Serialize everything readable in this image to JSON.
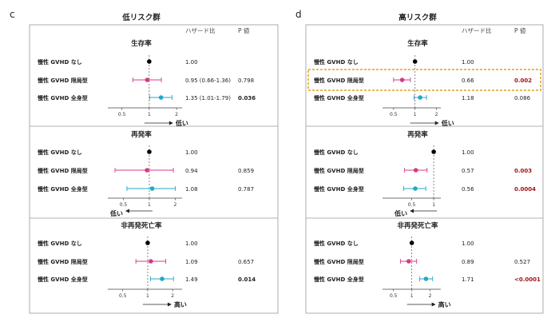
{
  "colors": {
    "restricted": "#d63a86",
    "systemic": "#22a8c7",
    "reference": "#000000",
    "significant_p": "#a3151a",
    "highlight": "#e0a020"
  },
  "chart_data": [
    {
      "type": "forest",
      "panel_label": "c",
      "title": "低リスク群",
      "col_hr_header": "ハザード比",
      "col_p_header": "P 値",
      "xscale": "log",
      "sections": [
        {
          "title": "生存率",
          "xlim": [
            0.35,
            2.3
          ],
          "ticks": [
            {
              "value": 0.5,
              "label": "0.5"
            },
            {
              "value": 1,
              "label": "1"
            },
            {
              "value": 2,
              "label": "2"
            }
          ],
          "direction_label": "低い",
          "direction_side": "right",
          "rows": [
            {
              "label": "慢性 GVHD なし",
              "kind": "reference",
              "hr": 1.0,
              "ci": null,
              "hr_text": "1.00",
              "p_text": "",
              "p_bold": false,
              "p_significant": false
            },
            {
              "label": "慢性 GVHD 限局型",
              "kind": "restricted",
              "hr": 0.95,
              "ci": [
                0.66,
                1.36
              ],
              "hr_text": "0.95 (0.66-1.36)",
              "p_text": "0.798",
              "p_bold": false,
              "p_significant": false
            },
            {
              "label": "慢性 GVHD 全身型",
              "kind": "systemic",
              "hr": 1.35,
              "ci": [
                1.01,
                1.79
              ],
              "hr_text": "1.35 (1.01-1.79)",
              "p_text": "0.036",
              "p_bold": true,
              "p_significant": false
            }
          ]
        },
        {
          "title": "再発率",
          "xlim": [
            0.33,
            2.4
          ],
          "ticks": [
            {
              "value": 0.5,
              "label": "0.5"
            },
            {
              "value": 1,
              "label": "1"
            },
            {
              "value": 2,
              "label": "2"
            }
          ],
          "direction_label": "低い",
          "direction_side": "left",
          "rows": [
            {
              "label": "慢性 GVHD なし",
              "kind": "reference",
              "hr": 1.0,
              "ci": null,
              "hr_text": "1.00",
              "p_text": "",
              "p_bold": false,
              "p_significant": false
            },
            {
              "label": "慢性 GVHD 限局型",
              "kind": "restricted",
              "hr": 0.94,
              "ci": [
                0.4,
                1.9
              ],
              "hr_text": "0.94",
              "p_text": "0.859",
              "p_bold": false,
              "p_significant": false
            },
            {
              "label": "慢性 GVHD 全身型",
              "kind": "systemic",
              "hr": 1.08,
              "ci": [
                0.55,
                2.0
              ],
              "hr_text": "1.08",
              "p_text": "0.787",
              "p_bold": false,
              "p_significant": false
            }
          ]
        },
        {
          "title": "非再発死亡率",
          "xlim": [
            0.33,
            2.6
          ],
          "ticks": [
            {
              "value": 0.5,
              "label": "0.5"
            },
            {
              "value": 1,
              "label": "1"
            },
            {
              "value": 2,
              "label": "2"
            }
          ],
          "direction_label": "高い",
          "direction_side": "right",
          "rows": [
            {
              "label": "慢性 GVHD なし",
              "kind": "reference",
              "hr": 1.0,
              "ci": null,
              "hr_text": "1.00",
              "p_text": "",
              "p_bold": false,
              "p_significant": false
            },
            {
              "label": "慢性 GVHD 限局型",
              "kind": "restricted",
              "hr": 1.09,
              "ci": [
                0.72,
                1.65
              ],
              "hr_text": "1.09",
              "p_text": "0.657",
              "p_bold": false,
              "p_significant": false
            },
            {
              "label": "慢性 GVHD 全身型",
              "kind": "systemic",
              "hr": 1.49,
              "ci": [
                1.08,
                2.05
              ],
              "hr_text": "1.49",
              "p_text": "0.014",
              "p_bold": true,
              "p_significant": false
            }
          ]
        }
      ]
    },
    {
      "type": "forest",
      "panel_label": "d",
      "title": "高リスク群",
      "col_hr_header": "ハザード比",
      "col_p_header": "P 値",
      "xscale": "log",
      "sections": [
        {
          "title": "生存率",
          "xlim": [
            0.35,
            2.3
          ],
          "ticks": [
            {
              "value": 0.5,
              "label": "0.5"
            },
            {
              "value": 1,
              "label": "1"
            },
            {
              "value": 2,
              "label": "2"
            }
          ],
          "direction_label": "低い",
          "direction_side": "right",
          "highlight_row": 1,
          "rows": [
            {
              "label": "慢性 GVHD なし",
              "kind": "reference",
              "hr": 1.0,
              "ci": null,
              "hr_text": "1.00",
              "p_text": "",
              "p_bold": false,
              "p_significant": false
            },
            {
              "label": "慢性 GVHD 限局型",
              "kind": "restricted",
              "hr": 0.66,
              "ci": [
                0.5,
                0.86
              ],
              "hr_text": "0.66",
              "p_text": "0.002",
              "p_bold": true,
              "p_significant": true
            },
            {
              "label": "慢性 GVHD 全身型",
              "kind": "systemic",
              "hr": 1.18,
              "ci": [
                0.97,
                1.45
              ],
              "hr_text": "1.18",
              "p_text": "0.086",
              "p_bold": false,
              "p_significant": false
            }
          ]
        },
        {
          "title": "再発率",
          "xlim": [
            0.2,
            1.25
          ],
          "ticks": [
            {
              "value": 0.5,
              "label": "0.5"
            },
            {
              "value": 1,
              "label": "1"
            }
          ],
          "direction_label": "低い",
          "direction_side": "left",
          "rows": [
            {
              "label": "慢性 GVHD なし",
              "kind": "reference",
              "hr": 1.0,
              "ci": null,
              "hr_text": "1.00",
              "p_text": "",
              "p_bold": false,
              "p_significant": false
            },
            {
              "label": "慢性 GVHD 限局型",
              "kind": "restricted",
              "hr": 0.57,
              "ci": [
                0.4,
                0.81
              ],
              "hr_text": "0.57",
              "p_text": "0.003",
              "p_bold": true,
              "p_significant": true
            },
            {
              "label": "慢性 GVHD 全身型",
              "kind": "systemic",
              "hr": 0.56,
              "ci": [
                0.39,
                0.78
              ],
              "hr_text": "0.56",
              "p_text": "0.0004",
              "p_bold": true,
              "p_significant": true
            }
          ]
        },
        {
          "title": "非再発死亡率",
          "xlim": [
            0.33,
            3.0
          ],
          "ticks": [
            {
              "value": 0.5,
              "label": "0.5"
            },
            {
              "value": 1,
              "label": "1"
            },
            {
              "value": 2,
              "label": "2"
            }
          ],
          "direction_label": "高い",
          "direction_side": "right",
          "rows": [
            {
              "label": "慢性 GVHD なし",
              "kind": "reference",
              "hr": 1.0,
              "ci": null,
              "hr_text": "1.00",
              "p_text": "",
              "p_bold": false,
              "p_significant": false
            },
            {
              "label": "慢性 GVHD 限局型",
              "kind": "restricted",
              "hr": 0.89,
              "ci": [
                0.65,
                1.2
              ],
              "hr_text": "0.89",
              "p_text": "0.527",
              "p_bold": false,
              "p_significant": false
            },
            {
              "label": "慢性 GVHD 全身型",
              "kind": "systemic",
              "hr": 1.71,
              "ci": [
                1.35,
                2.2
              ],
              "hr_text": "1.71",
              "p_text": "<0.0001",
              "p_bold": true,
              "p_significant": true
            }
          ]
        }
      ]
    }
  ]
}
